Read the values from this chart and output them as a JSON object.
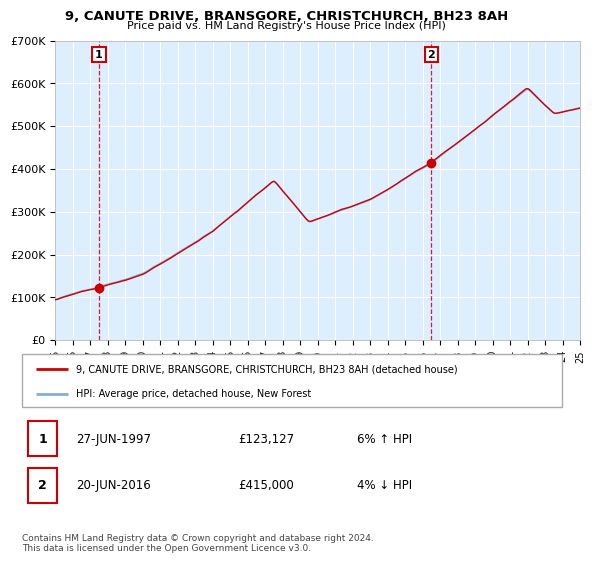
{
  "title": "9, CANUTE DRIVE, BRANSGORE, CHRISTCHURCH, BH23 8AH",
  "subtitle": "Price paid vs. HM Land Registry's House Price Index (HPI)",
  "ylim": [
    0,
    700000
  ],
  "yticks": [
    0,
    100000,
    200000,
    300000,
    400000,
    500000,
    600000,
    700000
  ],
  "ytick_labels": [
    "£0",
    "£100K",
    "£200K",
    "£300K",
    "£400K",
    "£500K",
    "£600K",
    "£700K"
  ],
  "x_start_year": 1995,
  "x_end_year": 2025,
  "sale1_year": 1997.49,
  "sale1_value": 123127,
  "sale1_label": "1",
  "sale1_date": "27-JUN-1997",
  "sale1_price": "£123,127",
  "sale1_hpi": "6% ↑ HPI",
  "sale2_year": 2016.47,
  "sale2_value": 415000,
  "sale2_label": "2",
  "sale2_date": "20-JUN-2016",
  "sale2_price": "£415,000",
  "sale2_hpi": "4% ↓ HPI",
  "property_color": "#cc0000",
  "hpi_color": "#88aadd",
  "background_color": "#ddeeff",
  "grid_color": "#ffffff",
  "legend_label_property": "9, CANUTE DRIVE, BRANSGORE, CHRISTCHURCH, BH23 8AH (detached house)",
  "legend_label_hpi": "HPI: Average price, detached house, New Forest",
  "footer": "Contains HM Land Registry data © Crown copyright and database right 2024.\nThis data is licensed under the Open Government Licence v3.0."
}
